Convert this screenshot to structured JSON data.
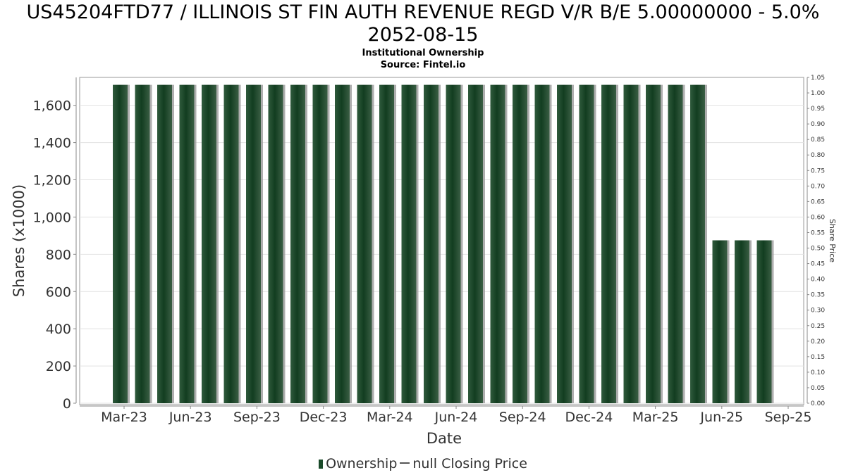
{
  "chart_data": {
    "type": "bar",
    "title": "US45204FTD77 / ILLINOIS ST FIN AUTH REVENUE REGD V/R B/E 5.00000000 - 5.0%",
    "title_line2": "2052-08-15",
    "subtitle": "Institutional Ownership",
    "source": "Source: Fintel.io",
    "xlabel": "Date",
    "ylabel": "Shares (x1000)",
    "y2label": "Share Price",
    "ylim": [
      0,
      1750
    ],
    "y2lim": [
      0,
      1.05
    ],
    "yticks": [
      "0",
      "200",
      "400",
      "600",
      "800",
      "1,000",
      "1,200",
      "1,400",
      "1,600"
    ],
    "y2ticks": [
      "0.00",
      "0.05",
      "0.10",
      "0.15",
      "0.20",
      "0.25",
      "0.30",
      "0.35",
      "0.40",
      "0.45",
      "0.50",
      "0.55",
      "0.60",
      "0.65",
      "0.70",
      "0.75",
      "0.80",
      "0.85",
      "0.90",
      "0.95",
      "1.00",
      "1.05"
    ],
    "xticks": [
      "Mar-23",
      "Jun-23",
      "Sep-23",
      "Dec-23",
      "Mar-24",
      "Jun-24",
      "Sep-24",
      "Dec-24",
      "Mar-25",
      "Jun-25",
      "Sep-25"
    ],
    "series": [
      {
        "name": "Ownership",
        "color": "#1a4a2a",
        "values": [
          1710,
          1710,
          1710,
          1710,
          1710,
          1710,
          1710,
          1710,
          1710,
          1710,
          1710,
          1710,
          1710,
          1710,
          1710,
          1710,
          1710,
          1710,
          1710,
          1710,
          1710,
          1710,
          1710,
          1710,
          1710,
          1710,
          1710,
          875,
          875,
          875
        ]
      }
    ],
    "legend": [
      "Ownership",
      "null Closing Price"
    ],
    "grid": true,
    "legend_position": "bottom"
  }
}
